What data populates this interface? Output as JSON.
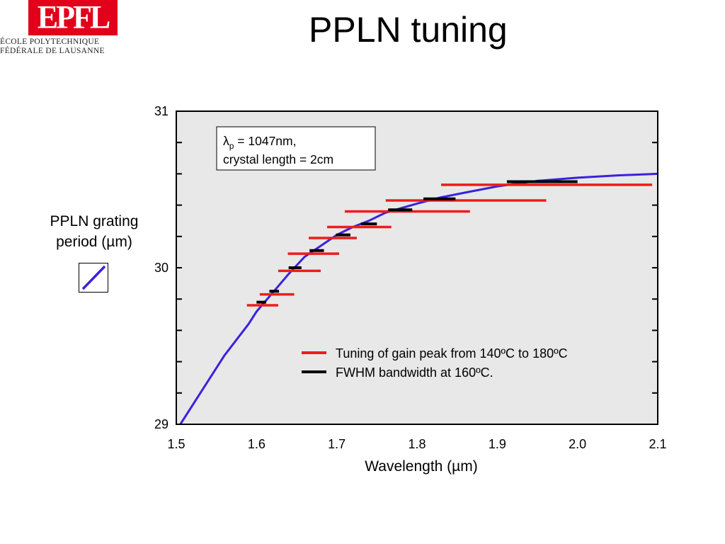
{
  "logo": {
    "mark": "EPFL",
    "line1": "ÉCOLE POLYTECHNIQUE",
    "line2": "FÉDÉRALE DE LAUSANNE"
  },
  "slide": {
    "title": "PPLN tuning"
  },
  "chart_data": {
    "type": "line",
    "xlabel": "Wavelength (µm)",
    "ylabel": "PPLN grating\nperiod (µm)",
    "xlim": [
      1.5,
      2.1
    ],
    "ylim": [
      29,
      31
    ],
    "xticks": [
      "1.5",
      "1.6",
      "1.7",
      "1.8",
      "1.9",
      "2.0",
      "2.1"
    ],
    "yticks": [
      "29",
      "30",
      "31"
    ],
    "grid": false,
    "background": "#e8e8e8",
    "annotation": {
      "line1_symbol": "λ",
      "line1_sub": "p",
      "line1_rest": " = 1047nm,",
      "line2": "crystal length = 2cm"
    },
    "legend": {
      "placement": "lower-right",
      "entries": [
        {
          "label": "Tuning of gain peak from 140ºC to 180ºC",
          "color": "#ee1c1c"
        },
        {
          "label": "FWHM bandwidth at 160ºC.",
          "color": "#000000"
        }
      ]
    },
    "curve": {
      "color": "#3a22dd",
      "x": [
        1.505,
        1.53,
        1.56,
        1.59,
        1.6,
        1.62,
        1.64,
        1.66,
        1.68,
        1.7,
        1.72,
        1.74,
        1.76,
        1.78,
        1.8,
        1.83,
        1.86,
        1.9,
        1.95,
        2.0,
        2.05,
        2.1
      ],
      "y": [
        29.0,
        29.2,
        29.44,
        29.64,
        29.72,
        29.84,
        29.96,
        30.07,
        30.14,
        30.21,
        30.26,
        30.3,
        30.35,
        30.38,
        30.41,
        30.45,
        30.48,
        30.52,
        30.555,
        30.575,
        30.59,
        30.6
      ]
    },
    "series": [
      {
        "name": "Tuning of gain peak from 140ºC to 180ºC",
        "color": "#ee1c1c",
        "segments": [
          {
            "x0": 1.588,
            "x1": 1.627,
            "y": 29.76
          },
          {
            "x0": 1.604,
            "x1": 1.647,
            "y": 29.83
          },
          {
            "x0": 1.627,
            "x1": 1.68,
            "y": 29.98
          },
          {
            "x0": 1.639,
            "x1": 1.703,
            "y": 30.09
          },
          {
            "x0": 1.665,
            "x1": 1.725,
            "y": 30.19
          },
          {
            "x0": 1.688,
            "x1": 1.768,
            "y": 30.26
          },
          {
            "x0": 1.71,
            "x1": 1.866,
            "y": 30.36
          },
          {
            "x0": 1.761,
            "x1": 1.961,
            "y": 30.43
          },
          {
            "x0": 1.83,
            "x1": 2.093,
            "y": 30.53
          }
        ]
      },
      {
        "name": "FWHM bandwidth at 160ºC.",
        "color": "#000000",
        "segments": [
          {
            "x0": 1.6,
            "x1": 1.612,
            "y": 29.78
          },
          {
            "x0": 1.616,
            "x1": 1.628,
            "y": 29.85
          },
          {
            "x0": 1.64,
            "x1": 1.656,
            "y": 30.0
          },
          {
            "x0": 1.666,
            "x1": 1.684,
            "y": 30.11
          },
          {
            "x0": 1.699,
            "x1": 1.717,
            "y": 30.21
          },
          {
            "x0": 1.73,
            "x1": 1.75,
            "y": 30.28
          },
          {
            "x0": 1.764,
            "x1": 1.794,
            "y": 30.37
          },
          {
            "x0": 1.808,
            "x1": 1.848,
            "y": 30.44
          },
          {
            "x0": 1.912,
            "x1": 2.0,
            "y": 30.55
          }
        ]
      }
    ]
  }
}
